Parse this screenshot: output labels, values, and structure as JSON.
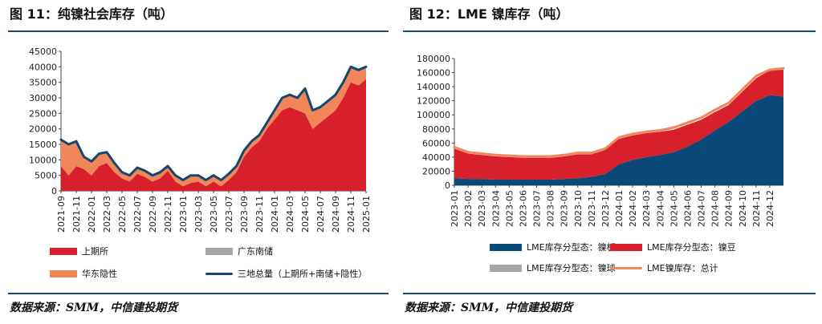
{
  "left": {
    "title": "图 11：纯镍社会库存（吨）",
    "source": "数据来源：SMM，中信建投期货",
    "chart_data": {
      "type": "area",
      "ylim": [
        0,
        45000
      ],
      "y_ticks": [
        0,
        5000,
        10000,
        15000,
        20000,
        25000,
        30000,
        35000,
        40000,
        45000
      ],
      "x_ticks": [
        "2021-09",
        "2021-11",
        "2022-01",
        "2022-03",
        "2022-05",
        "2022-07",
        "2022-09",
        "2022-11",
        "2023-01",
        "2023-03",
        "2023-05",
        "2023-07",
        "2023-09",
        "2023-11",
        "2024-01",
        "2024-03",
        "2024-05",
        "2024-07",
        "2024-09",
        "2024-11",
        "2025-01"
      ],
      "grid": false,
      "legend_position": "bottom",
      "x": [
        "2021-09",
        "2021-10",
        "2021-11",
        "2021-12",
        "2022-01",
        "2022-02",
        "2022-03",
        "2022-04",
        "2022-05",
        "2022-06",
        "2022-07",
        "2022-08",
        "2022-09",
        "2022-10",
        "2022-11",
        "2022-12",
        "2023-01",
        "2023-02",
        "2023-03",
        "2023-04",
        "2023-05",
        "2023-06",
        "2023-07",
        "2023-08",
        "2023-09",
        "2023-10",
        "2023-11",
        "2023-12",
        "2024-01",
        "2024-02",
        "2024-03",
        "2024-04",
        "2024-05",
        "2024-06",
        "2024-07",
        "2024-08",
        "2024-09",
        "2024-10",
        "2024-11",
        "2024-12",
        "2025-01"
      ],
      "series": [
        {
          "name": "上期所",
          "kind": "area",
          "color": "#d7202b",
          "values": [
            8000,
            5000,
            8000,
            7000,
            5000,
            8000,
            9000,
            6000,
            4000,
            3000,
            5500,
            4500,
            3000,
            4000,
            6500,
            3000,
            1500,
            2500,
            3000,
            1500,
            3000,
            1500,
            3500,
            6000,
            11000,
            14000,
            16000,
            20000,
            23000,
            26000,
            27000,
            26000,
            25000,
            20000,
            22000,
            24000,
            26000,
            30000,
            35000,
            34000,
            36000
          ]
        },
        {
          "name": "华东隐性",
          "kind": "area",
          "color": "#f0865a",
          "values": [
            8500,
            10000,
            8000,
            4000,
            4500,
            4000,
            3500,
            3000,
            2000,
            2000,
            2000,
            2000,
            2000,
            2000,
            1500,
            2000,
            2000,
            2500,
            2000,
            2000,
            2000,
            2000,
            2000,
            2000,
            2000,
            2000,
            2000,
            2000,
            3000,
            4000,
            4000,
            4000,
            8000,
            6000,
            5000,
            5000,
            5000,
            5000,
            5000,
            5000,
            4000
          ]
        },
        {
          "name": "广东南储",
          "kind": "area",
          "color": "#a6a6a6",
          "values": [
            0,
            0,
            0,
            0,
            0,
            0,
            0,
            0,
            0,
            0,
            0,
            0,
            0,
            0,
            0,
            0,
            0,
            0,
            0,
            0,
            0,
            0,
            0,
            0,
            0,
            0,
            0,
            0,
            0,
            0,
            0,
            0,
            0,
            0,
            0,
            0,
            0,
            0,
            0,
            0,
            0
          ]
        },
        {
          "name": "三地总量（上期所+南储+隐性）",
          "kind": "line",
          "color": "#15466b",
          "values": [
            16500,
            15000,
            16000,
            11000,
            9500,
            12000,
            12500,
            9000,
            6000,
            5000,
            7500,
            6500,
            5000,
            6000,
            8000,
            5000,
            3500,
            5000,
            5000,
            3500,
            5000,
            3500,
            5500,
            8000,
            13000,
            16000,
            18000,
            22000,
            26000,
            30000,
            31000,
            30000,
            33000,
            26000,
            27000,
            29000,
            31000,
            35000,
            40000,
            39000,
            40000
          ]
        }
      ]
    }
  },
  "right": {
    "title": "图 12：LME 镍库存（吨）",
    "source": "数据来源：SMM，中信建投期货",
    "chart_data": {
      "type": "area",
      "ylim": [
        0,
        180000
      ],
      "y_ticks": [
        0,
        20000,
        40000,
        60000,
        80000,
        100000,
        120000,
        140000,
        160000,
        180000
      ],
      "x_ticks": [
        "2023-01",
        "2023-02",
        "2023-03",
        "2023-04",
        "2023-05",
        "2023-06",
        "2023-07",
        "2023-08",
        "2023-09",
        "2023-10",
        "2023-11",
        "2023-12",
        "2024-01",
        "2024-02",
        "2024-03",
        "2024-04",
        "2024-05",
        "2024-06",
        "2024-07",
        "2024-08",
        "2024-09",
        "2024-10",
        "2024-11",
        "2024-12"
      ],
      "grid": false,
      "legend_position": "bottom",
      "x": [
        "2023-01",
        "2023-02",
        "2023-03",
        "2023-04",
        "2023-05",
        "2023-06",
        "2023-07",
        "2023-08",
        "2023-09",
        "2023-10",
        "2023-11",
        "2023-12",
        "2024-01",
        "2024-02",
        "2024-03",
        "2024-04",
        "2024-05",
        "2024-06",
        "2024-07",
        "2024-08",
        "2024-09",
        "2024-10",
        "2024-11",
        "2024-12",
        "2025-01"
      ],
      "series": [
        {
          "name": "LME库存分型态：镍板",
          "kind": "area",
          "color": "#0b4a78",
          "values": [
            10000,
            9000,
            9000,
            8000,
            8000,
            8000,
            8000,
            8000,
            9000,
            10000,
            12000,
            16000,
            30000,
            36000,
            40000,
            43000,
            47000,
            55000,
            65000,
            78000,
            90000,
            105000,
            120000,
            128000,
            126000
          ]
        },
        {
          "name": "LME库存分型态：镍豆",
          "kind": "area",
          "color": "#d7202b",
          "values": [
            42000,
            36000,
            34000,
            33000,
            32000,
            31000,
            31000,
            31000,
            32000,
            34000,
            32000,
            34000,
            36000,
            35000,
            34000,
            33000,
            32000,
            31000,
            28000,
            26000,
            24000,
            28000,
            32000,
            35000,
            38000
          ]
        },
        {
          "name": "LME库存分型态：镍球",
          "kind": "area",
          "color": "#a6a6a6",
          "values": [
            0,
            0,
            0,
            0,
            0,
            0,
            0,
            0,
            0,
            0,
            0,
            0,
            0,
            0,
            0,
            0,
            0,
            0,
            0,
            0,
            0,
            0,
            0,
            0,
            0
          ]
        },
        {
          "name": "LME镍库存：总计",
          "kind": "line",
          "color": "#f0865a",
          "values": [
            54000,
            47000,
            45000,
            43000,
            42000,
            41000,
            41000,
            41000,
            43000,
            46000,
            46000,
            52000,
            68000,
            73000,
            76000,
            78000,
            82000,
            89000,
            96000,
            107000,
            117000,
            136000,
            155000,
            164000,
            166000
          ]
        }
      ]
    }
  }
}
